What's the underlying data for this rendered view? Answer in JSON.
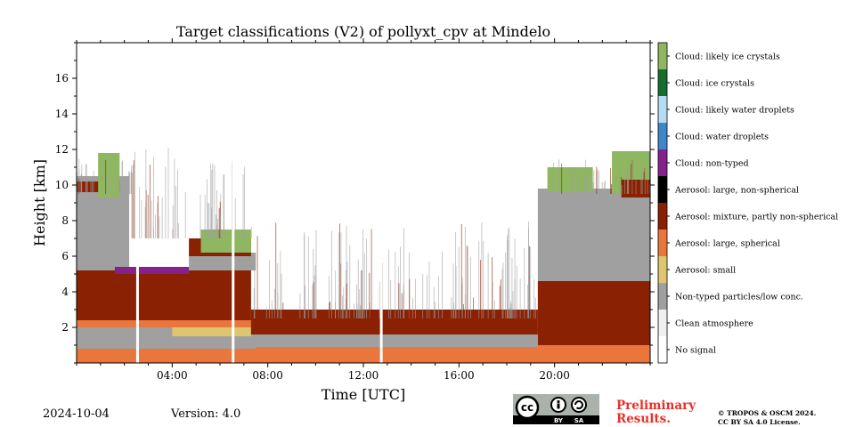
{
  "chart_data": {
    "type": "heatmap",
    "title": "Target classifications (V2) of pollyxt_cpv at Mindelo",
    "xlabel": "Time [UTC]",
    "ylabel": "Height [km]",
    "xlim_hours": [
      0,
      24
    ],
    "ylim_km": [
      0,
      18
    ],
    "x_ticks": [
      "04:00",
      "08:00",
      "12:00",
      "16:00",
      "20:00"
    ],
    "x_tick_hours": [
      4,
      8,
      12,
      16,
      20
    ],
    "y_ticks": [
      "2",
      "4",
      "6",
      "8",
      "10",
      "12",
      "14",
      "16"
    ],
    "y_tick_values": [
      2,
      4,
      6,
      8,
      10,
      12,
      14,
      16
    ],
    "legend_placement": "right colorbar",
    "classes": [
      {
        "label": "No signal",
        "color": "#ffffff"
      },
      {
        "label": "Clean atmosphere",
        "color": "#f0f0f0"
      },
      {
        "label": "Non-typed particles/low conc.",
        "color": "#a0a0a0"
      },
      {
        "label": "Aerosol: small",
        "color": "#dec56f"
      },
      {
        "label": "Aerosol: large, spherical",
        "color": "#e9763c"
      },
      {
        "label": "Aerosol: mixture, partly non-spherical",
        "color": "#892102"
      },
      {
        "label": "Aerosol: large, non-spherical",
        "color": "#000000"
      },
      {
        "label": "Cloud: non-typed",
        "color": "#84218a"
      },
      {
        "label": "Cloud: water droplets",
        "color": "#3d87c9"
      },
      {
        "label": "Cloud: likely water droplets",
        "color": "#b6dcf5"
      },
      {
        "label": "Cloud: ice crystals",
        "color": "#156d2e"
      },
      {
        "label": "Cloud: likely ice crystals",
        "color": "#8fb660"
      }
    ],
    "layers": [
      {
        "class": "Aerosol: large, spherical",
        "start_h": 0,
        "end_h": 24,
        "bottom_km": 0,
        "top_km": 1.0
      },
      {
        "class": "Non-typed particles/low conc.",
        "start_h": 0,
        "end_h": 7.5,
        "bottom_km": 0.8,
        "top_km": 2.3
      },
      {
        "class": "Aerosol: small",
        "start_h": 4,
        "end_h": 7.5,
        "bottom_km": 1.5,
        "top_km": 2.0
      },
      {
        "class": "Aerosol: large, spherical",
        "start_h": 0,
        "end_h": 7.5,
        "bottom_km": 2.0,
        "top_km": 2.5
      },
      {
        "class": "Aerosol: mixture, partly non-spherical",
        "start_h": 0,
        "end_h": 7.3,
        "bottom_km": 2.4,
        "top_km": 5.2
      },
      {
        "class": "Non-typed particles/low conc.",
        "start_h": 0,
        "end_h": 2.2,
        "bottom_km": 5.2,
        "top_km": 10.5
      },
      {
        "class": "Cloud: non-typed",
        "start_h": 1.6,
        "end_h": 4.7,
        "bottom_km": 5.0,
        "top_km": 5.4
      },
      {
        "class": "Non-typed particles/low conc.",
        "start_h": 4.7,
        "end_h": 7.5,
        "bottom_km": 5.2,
        "top_km": 6.2
      },
      {
        "class": "Aerosol: mixture, partly non-spherical",
        "start_h": 4.7,
        "end_h": 7.3,
        "bottom_km": 6.0,
        "top_km": 7.0
      },
      {
        "class": "Cloud: likely ice crystals",
        "start_h": 5.2,
        "end_h": 7.3,
        "bottom_km": 6.2,
        "top_km": 7.5
      },
      {
        "class": "Aerosol: mixture, partly non-spherical",
        "start_h": 0,
        "end_h": 1.8,
        "bottom_km": 9.6,
        "top_km": 10.2
      },
      {
        "class": "Cloud: likely ice crystals",
        "start_h": 0.9,
        "end_h": 1.8,
        "bottom_km": 9.3,
        "top_km": 11.8
      },
      {
        "class": "Non-typed particles/low conc.",
        "start_h": 7.3,
        "end_h": 19.3,
        "bottom_km": 0.9,
        "top_km": 2.0
      },
      {
        "class": "Aerosol: mixture, partly non-spherical",
        "start_h": 7.3,
        "end_h": 19.3,
        "bottom_km": 1.6,
        "top_km": 3.0
      },
      {
        "class": "Aerosol: mixture, partly non-spherical",
        "start_h": 19.3,
        "end_h": 24,
        "bottom_km": 1.0,
        "top_km": 4.6
      },
      {
        "class": "Non-typed particles/low conc.",
        "start_h": 19.3,
        "end_h": 24,
        "bottom_km": 4.6,
        "top_km": 9.8
      },
      {
        "class": "Cloud: likely ice crystals",
        "start_h": 19.7,
        "end_h": 21.6,
        "bottom_km": 9.6,
        "top_km": 11.0
      },
      {
        "class": "Cloud: likely ice crystals",
        "start_h": 22.4,
        "end_h": 24,
        "bottom_km": 9.5,
        "top_km": 11.9
      },
      {
        "class": "Aerosol: mixture, partly non-spherical",
        "start_h": 22.8,
        "end_h": 24,
        "bottom_km": 9.3,
        "top_km": 10.3
      }
    ],
    "gaps_h": [
      2.55,
      6.55,
      12.75
    ]
  },
  "footer": {
    "date": "2024-10-04",
    "version": "Version: 4.0",
    "preliminary_line1": "Preliminary",
    "preliminary_line2": "Results.",
    "copyright_line1": "© TROPOS & OSCM 2024.",
    "copyright_line2": "CC BY SA 4.0 License.",
    "cc_badge": {
      "by": "BY",
      "sa": "SA",
      "cc": "cc"
    }
  }
}
